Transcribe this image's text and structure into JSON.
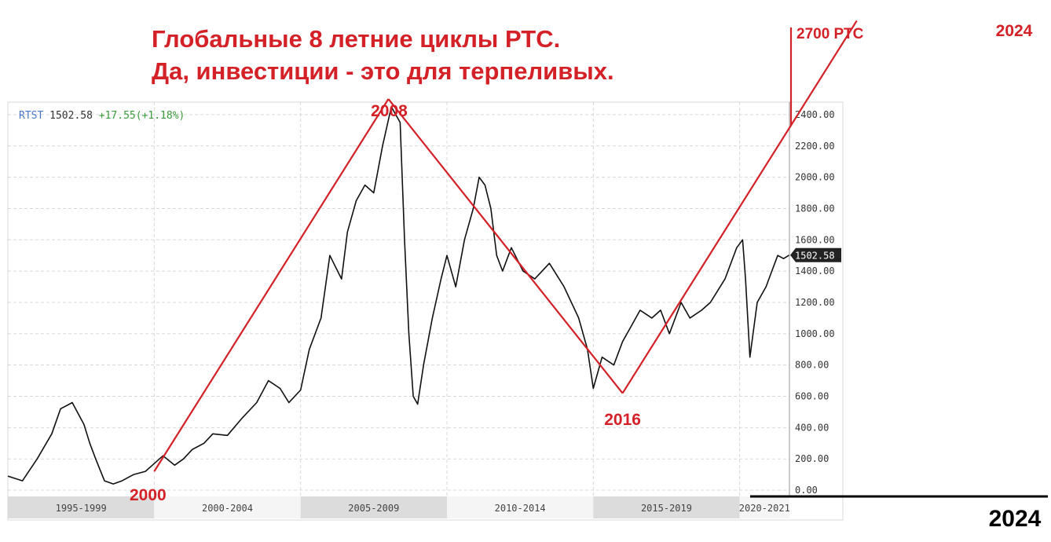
{
  "headline": {
    "line1": "Глобальные 8 летние циклы РТС.",
    "line2": "Да, инвестиции - это для терпеливых."
  },
  "chart_data": {
    "type": "line",
    "title": "Глобальные 8 летние циклы РТС. Да, инвестиции - это для терпеливых.",
    "ticker": {
      "symbol": "RTST",
      "last": "1502.58",
      "change": "+17.55",
      "change_pct": "(+1.18%)"
    },
    "price_badge": "1502.58",
    "ylim": [
      -40,
      2480
    ],
    "y_ticks": [
      "0.00",
      "200.00",
      "400.00",
      "600.00",
      "800.00",
      "1000.00",
      "1200.00",
      "1400.00",
      "1600.00",
      "1800.00",
      "2000.00",
      "2200.00",
      "2400.00"
    ],
    "y_tick_values": [
      0,
      200,
      400,
      600,
      800,
      1000,
      1200,
      1400,
      1600,
      1800,
      2000,
      2200,
      2400
    ],
    "x_range": [
      1995.0,
      2021.7
    ],
    "period_labels": [
      "1995-1999",
      "2000-2004",
      "2005-2009",
      "2010-2014",
      "2015-2019",
      "2020-2021"
    ],
    "period_bounds": [
      [
        1995.0,
        2000.0
      ],
      [
        2000.0,
        2005.0
      ],
      [
        2005.0,
        2010.0
      ],
      [
        2010.0,
        2015.0
      ],
      [
        2015.0,
        2020.0
      ],
      [
        2020.0,
        2021.7
      ]
    ],
    "grid": true,
    "series": [
      {
        "x": [
          1995.0,
          1995.5,
          1996.0,
          1996.5,
          1996.8,
          1997.2,
          1997.6,
          1997.8,
          1998.0,
          1998.3,
          1998.6,
          1998.9,
          1999.3,
          1999.7,
          2000.0,
          2000.3,
          2000.7,
          2001.0,
          2001.3,
          2001.7,
          2002.0,
          2002.5,
          2003.0,
          2003.5,
          2003.9,
          2004.3,
          2004.6,
          2005.0,
          2005.3,
          2005.7,
          2006.0,
          2006.4,
          2006.6,
          2006.9,
          2007.2,
          2007.5,
          2007.8,
          2008.1,
          2008.4,
          2008.55,
          2008.7,
          2008.85,
          2009.0,
          2009.2,
          2009.5,
          2009.8,
          2010.0,
          2010.3,
          2010.6,
          2010.9,
          2011.1,
          2011.3,
          2011.5,
          2011.7,
          2011.9,
          2012.2,
          2012.6,
          2013.0,
          2013.5,
          2014.0,
          2014.5,
          2014.8,
          2015.0,
          2015.3,
          2015.7,
          2016.0,
          2016.3,
          2016.6,
          2017.0,
          2017.3,
          2017.6,
          2018.0,
          2018.3,
          2018.7,
          2019.0,
          2019.5,
          2019.9,
          2020.1,
          2020.2,
          2020.35,
          2020.6,
          2020.9,
          2021.1,
          2021.3,
          2021.5,
          2021.7
        ],
        "y": [
          90,
          60,
          200,
          360,
          520,
          560,
          420,
          300,
          200,
          60,
          40,
          60,
          100,
          120,
          170,
          220,
          160,
          200,
          260,
          300,
          360,
          350,
          460,
          560,
          700,
          650,
          560,
          640,
          900,
          1100,
          1500,
          1350,
          1650,
          1850,
          1950,
          1900,
          2200,
          2450,
          2350,
          1600,
          1000,
          600,
          550,
          800,
          1100,
          1350,
          1500,
          1300,
          1600,
          1800,
          2000,
          1950,
          1800,
          1500,
          1400,
          1550,
          1400,
          1350,
          1450,
          1300,
          1100,
          900,
          650,
          850,
          800,
          950,
          1050,
          1150,
          1100,
          1150,
          1000,
          1200,
          1100,
          1150,
          1200,
          1350,
          1550,
          1600,
          1350,
          850,
          1200,
          1300,
          1400,
          1500,
          1480,
          1502.58
        ]
      }
    ],
    "cycle_line": {
      "points": [
        {
          "year": 2000,
          "value": 120,
          "label": "2000"
        },
        {
          "year": 2008,
          "value": 2500,
          "label": "2008"
        },
        {
          "year": 2016,
          "value": 620,
          "label": "2016"
        }
      ],
      "to_year": 2024,
      "label_2024": "2024",
      "marker_label": "2700 РТС",
      "axis_label_2024": "2024"
    },
    "colors": {
      "accent": "#d42027",
      "price": "#111111",
      "grid": "#d8d8d8",
      "panel": "#f2f2f2",
      "band": "#dcdcdc"
    }
  }
}
